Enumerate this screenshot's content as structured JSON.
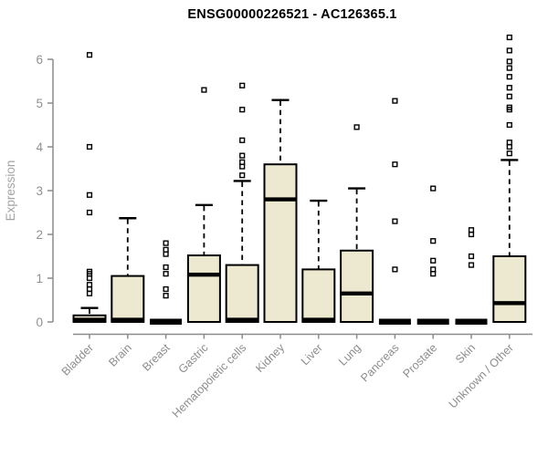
{
  "chart_data": {
    "type": "box",
    "title": "ENSG00000226521 - AC126365.1",
    "ylabel": "Expression",
    "xlabel": "",
    "ylim": [
      0,
      6.6
    ],
    "yticks": [
      0,
      1,
      2,
      3,
      4,
      5,
      6
    ],
    "grid": false,
    "legend": "none",
    "categories": [
      "Bladder",
      "Brain",
      "Breast",
      "Gastric",
      "Hematopoietic cells",
      "Kidney",
      "Liver",
      "Lung",
      "Pancreas",
      "Prostate",
      "Skin",
      "Unknown / Other"
    ],
    "boxes": [
      {
        "label": "Bladder",
        "q1": 0,
        "median": 0.05,
        "q3": 0.15,
        "whisker_low": 0,
        "whisker_high": 0.32,
        "outliers": [
          0.65,
          0.75,
          0.85,
          1.0,
          1.1,
          1.15,
          2.5,
          2.9,
          4.0,
          6.1
        ]
      },
      {
        "label": "Brain",
        "q1": 0,
        "median": 0.05,
        "q3": 1.05,
        "whisker_low": 0,
        "whisker_high": 2.37,
        "outliers": []
      },
      {
        "label": "Breast",
        "q1": 0,
        "median": 0,
        "q3": 0.05,
        "whisker_low": 0,
        "whisker_high": 0.05,
        "outliers": [
          0.6,
          0.75,
          1.1,
          1.25,
          1.55,
          1.65,
          1.8
        ]
      },
      {
        "label": "Gastric",
        "q1": 0,
        "median": 1.08,
        "q3": 1.52,
        "whisker_low": 0,
        "whisker_high": 2.67,
        "outliers": [
          5.3
        ]
      },
      {
        "label": "Hematopoietic cells",
        "q1": 0,
        "median": 0.05,
        "q3": 1.3,
        "whisker_low": 0,
        "whisker_high": 3.22,
        "outliers": [
          3.35,
          3.55,
          3.65,
          3.8,
          4.15,
          4.85,
          5.4
        ]
      },
      {
        "label": "Kidney",
        "q1": 0,
        "median": 2.8,
        "q3": 3.6,
        "whisker_low": 0,
        "whisker_high": 5.07,
        "outliers": []
      },
      {
        "label": "Liver",
        "q1": 0,
        "median": 0.05,
        "q3": 1.2,
        "whisker_low": 0,
        "whisker_high": 2.77,
        "outliers": []
      },
      {
        "label": "Lung",
        "q1": 0,
        "median": 0.65,
        "q3": 1.63,
        "whisker_low": 0,
        "whisker_high": 3.05,
        "outliers": [
          4.45
        ]
      },
      {
        "label": "Pancreas",
        "q1": 0,
        "median": 0,
        "q3": 0.05,
        "whisker_low": 0,
        "whisker_high": 0.05,
        "outliers": [
          1.2,
          2.3,
          3.6,
          5.05
        ]
      },
      {
        "label": "Prostate",
        "q1": 0,
        "median": 0,
        "q3": 0.05,
        "whisker_low": 0,
        "whisker_high": 0.05,
        "outliers": [
          1.1,
          1.2,
          1.4,
          1.85,
          3.05
        ]
      },
      {
        "label": "Skin",
        "q1": 0,
        "median": 0,
        "q3": 0.05,
        "whisker_low": 0,
        "whisker_high": 0.05,
        "outliers": [
          1.3,
          1.5,
          2.0,
          2.1
        ]
      },
      {
        "label": "Unknown / Other",
        "q1": 0,
        "median": 0.43,
        "q3": 1.5,
        "whisker_low": 0,
        "whisker_high": 3.7,
        "outliers": [
          3.85,
          4.0,
          4.1,
          4.5,
          4.85,
          4.9,
          5.15,
          5.35,
          5.6,
          5.8,
          5.95,
          6.2,
          6.5
        ]
      }
    ],
    "colors": {
      "box_fill": "#EDE8D0",
      "box_border": "#000000",
      "median": "#000000",
      "whisker": "#000000",
      "outlier": "#000000",
      "axis": "#8C8C8C",
      "tick_label": "#909090",
      "ylabel_color": "#A3A3A3",
      "title_color": "#000000",
      "background": "#FFFFFF"
    }
  }
}
